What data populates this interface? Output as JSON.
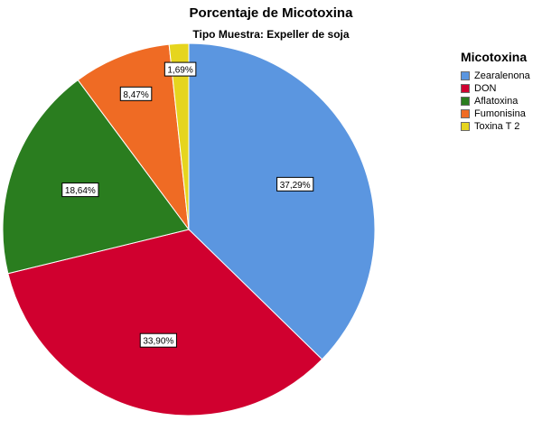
{
  "chart_data": {
    "type": "pie",
    "title": "Porcentaje de Micotoxina",
    "subtitle": "Tipo Muestra: Expeller de soja",
    "legend_title": "Micotoxina",
    "legend_position": "right",
    "slices": [
      {
        "name": "Zearalenona",
        "value": 37.29,
        "label": "37,29%",
        "color": "#5b96e0"
      },
      {
        "name": "DON",
        "value": 33.9,
        "label": "33,90%",
        "color": "#d0002f"
      },
      {
        "name": "Aflatoxina",
        "value": 18.64,
        "label": "18,64%",
        "color": "#2a7d1f"
      },
      {
        "name": "Fumonisina",
        "value": 8.47,
        "label": "8,47%",
        "color": "#ef6b24"
      },
      {
        "name": "Toxina T 2",
        "value": 1.69,
        "label": "1,69%",
        "color": "#e6d51e"
      }
    ]
  }
}
